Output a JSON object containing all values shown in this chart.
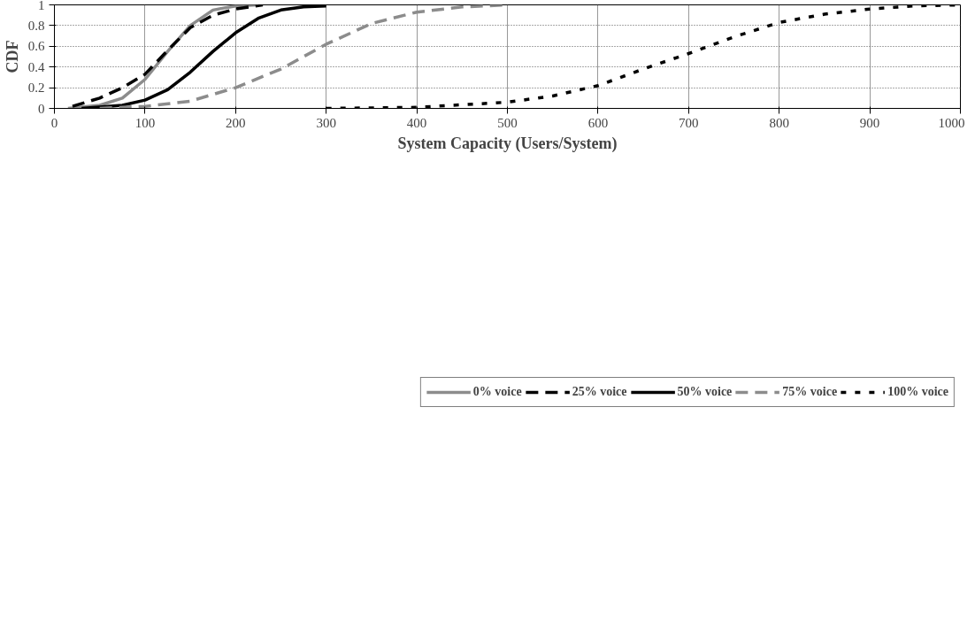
{
  "chart_data": {
    "type": "line",
    "xlabel": "System Capacity (Users/System)",
    "ylabel": "CDF",
    "xlim": [
      0,
      1000
    ],
    "ylim": [
      0,
      1
    ],
    "xticks": [
      0,
      100,
      200,
      300,
      400,
      500,
      600,
      700,
      800,
      900,
      1000
    ],
    "yticks": [
      0,
      0.2,
      0.4,
      0.6,
      0.8,
      1
    ],
    "grid": true,
    "legend": "bottom",
    "marker": "none",
    "series": [
      {
        "name": "0% voice",
        "color": "#8c8c8c",
        "line_style": "solid",
        "x": [
          15,
          50,
          75,
          100,
          125,
          150,
          175,
          200,
          225
        ],
        "values": [
          0,
          0.03,
          0.1,
          0.28,
          0.55,
          0.8,
          0.95,
          0.99,
          1.0
        ]
      },
      {
        "name": "25% voice",
        "color": "#000000",
        "line_style": "dashed",
        "x": [
          20,
          50,
          75,
          100,
          125,
          150,
          175,
          200,
          230
        ],
        "values": [
          0.02,
          0.1,
          0.2,
          0.33,
          0.56,
          0.78,
          0.9,
          0.96,
          1.0
        ]
      },
      {
        "name": "50% voice",
        "color": "#000000",
        "line_style": "solid",
        "x": [
          30,
          75,
          100,
          125,
          150,
          175,
          200,
          225,
          250,
          275,
          300
        ],
        "values": [
          0,
          0.03,
          0.08,
          0.18,
          0.35,
          0.55,
          0.73,
          0.87,
          0.95,
          0.98,
          0.99
        ]
      },
      {
        "name": "75% voice",
        "color": "#8c8c8c",
        "line_style": "dashed",
        "x": [
          50,
          100,
          150,
          200,
          250,
          300,
          350,
          400,
          450,
          500
        ],
        "values": [
          0,
          0.02,
          0.07,
          0.2,
          0.38,
          0.62,
          0.82,
          0.93,
          0.98,
          1.0
        ]
      },
      {
        "name": "100% voice",
        "color": "#000000",
        "line_style": "dotted",
        "x": [
          300,
          400,
          500,
          550,
          600,
          650,
          700,
          750,
          800,
          850,
          900,
          950,
          1000
        ],
        "values": [
          0,
          0.01,
          0.06,
          0.12,
          0.22,
          0.38,
          0.53,
          0.69,
          0.83,
          0.91,
          0.96,
          0.99,
          1.0
        ]
      }
    ]
  }
}
